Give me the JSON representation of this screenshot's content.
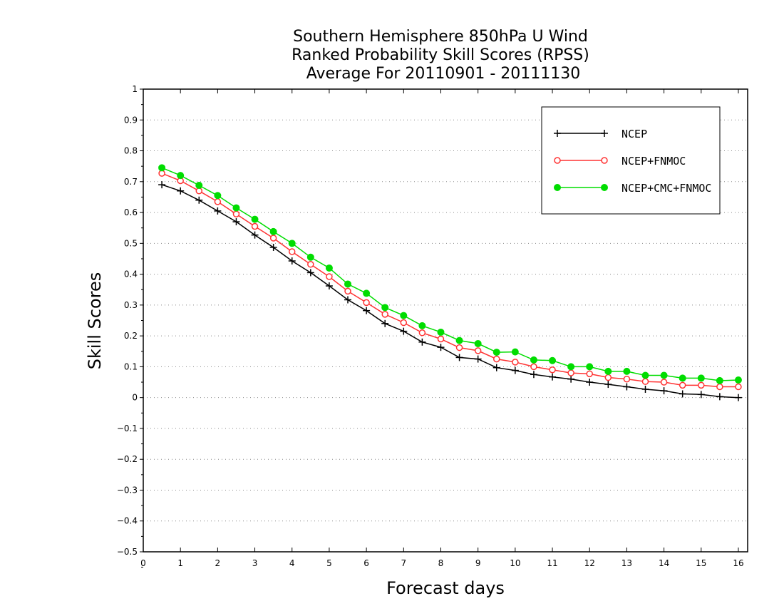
{
  "chart_data": {
    "type": "line",
    "title_lines": [
      "Southern Hemisphere 850hPa U Wind",
      "Ranked Probability Skill Scores (RPSS)",
      "Average For 20110901 - 20111130"
    ],
    "xlabel": "Forecast days",
    "ylabel": "Skill Scores",
    "xlim": [
      0,
      16.25
    ],
    "ylim": [
      -0.5,
      1
    ],
    "x_ticks": [
      "0",
      "1",
      "2",
      "3",
      "4",
      "5",
      "6",
      "7",
      "8",
      "9",
      "10",
      "11",
      "12",
      "13",
      "14",
      "15",
      "16"
    ],
    "y_ticks": [
      "−0.5",
      "−0.4",
      "−0.3",
      "−0.2",
      "−0.1",
      "0",
      "0.1",
      "0.2",
      "0.3",
      "0.4",
      "0.5",
      "0.6",
      "0.7",
      "0.8",
      "0.9",
      "1"
    ],
    "grid": "dotted horizontal",
    "legend_position": "top-right",
    "x": [
      0.5,
      1,
      1.5,
      2,
      2.5,
      3,
      3.5,
      4,
      4.5,
      5,
      5.5,
      6,
      6.5,
      7,
      7.5,
      8,
      8.5,
      9,
      9.5,
      10,
      10.5,
      11,
      11.5,
      12,
      12.5,
      13,
      13.5,
      14,
      14.5,
      15,
      15.5,
      16
    ],
    "series": [
      {
        "name": "NCEP",
        "color": "#000000",
        "marker": "plus",
        "values": [
          0.69,
          0.67,
          0.64,
          0.605,
          0.57,
          0.527,
          0.487,
          0.443,
          0.405,
          0.362,
          0.317,
          0.282,
          0.24,
          0.215,
          0.18,
          0.163,
          0.13,
          0.125,
          0.097,
          0.088,
          0.075,
          0.067,
          0.06,
          0.05,
          0.043,
          0.035,
          0.027,
          0.022,
          0.012,
          0.01,
          0.003,
          0.0
        ]
      },
      {
        "name": "NCEP+FNMOC",
        "color": "#ff3333",
        "marker": "open-circle",
        "values": [
          0.727,
          0.703,
          0.67,
          0.635,
          0.595,
          0.555,
          0.517,
          0.473,
          0.432,
          0.392,
          0.345,
          0.308,
          0.27,
          0.243,
          0.21,
          0.19,
          0.162,
          0.152,
          0.125,
          0.115,
          0.1,
          0.09,
          0.08,
          0.077,
          0.065,
          0.06,
          0.052,
          0.05,
          0.04,
          0.04,
          0.035,
          0.035
        ]
      },
      {
        "name": "NCEP+CMC+FNMOC",
        "color": "#00dd00",
        "marker": "filled-circle",
        "values": [
          0.745,
          0.72,
          0.688,
          0.655,
          0.615,
          0.578,
          0.538,
          0.5,
          0.455,
          0.42,
          0.368,
          0.338,
          0.292,
          0.266,
          0.233,
          0.212,
          0.185,
          0.175,
          0.147,
          0.148,
          0.122,
          0.12,
          0.1,
          0.1,
          0.085,
          0.085,
          0.072,
          0.072,
          0.063,
          0.063,
          0.055,
          0.057
        ]
      }
    ]
  }
}
